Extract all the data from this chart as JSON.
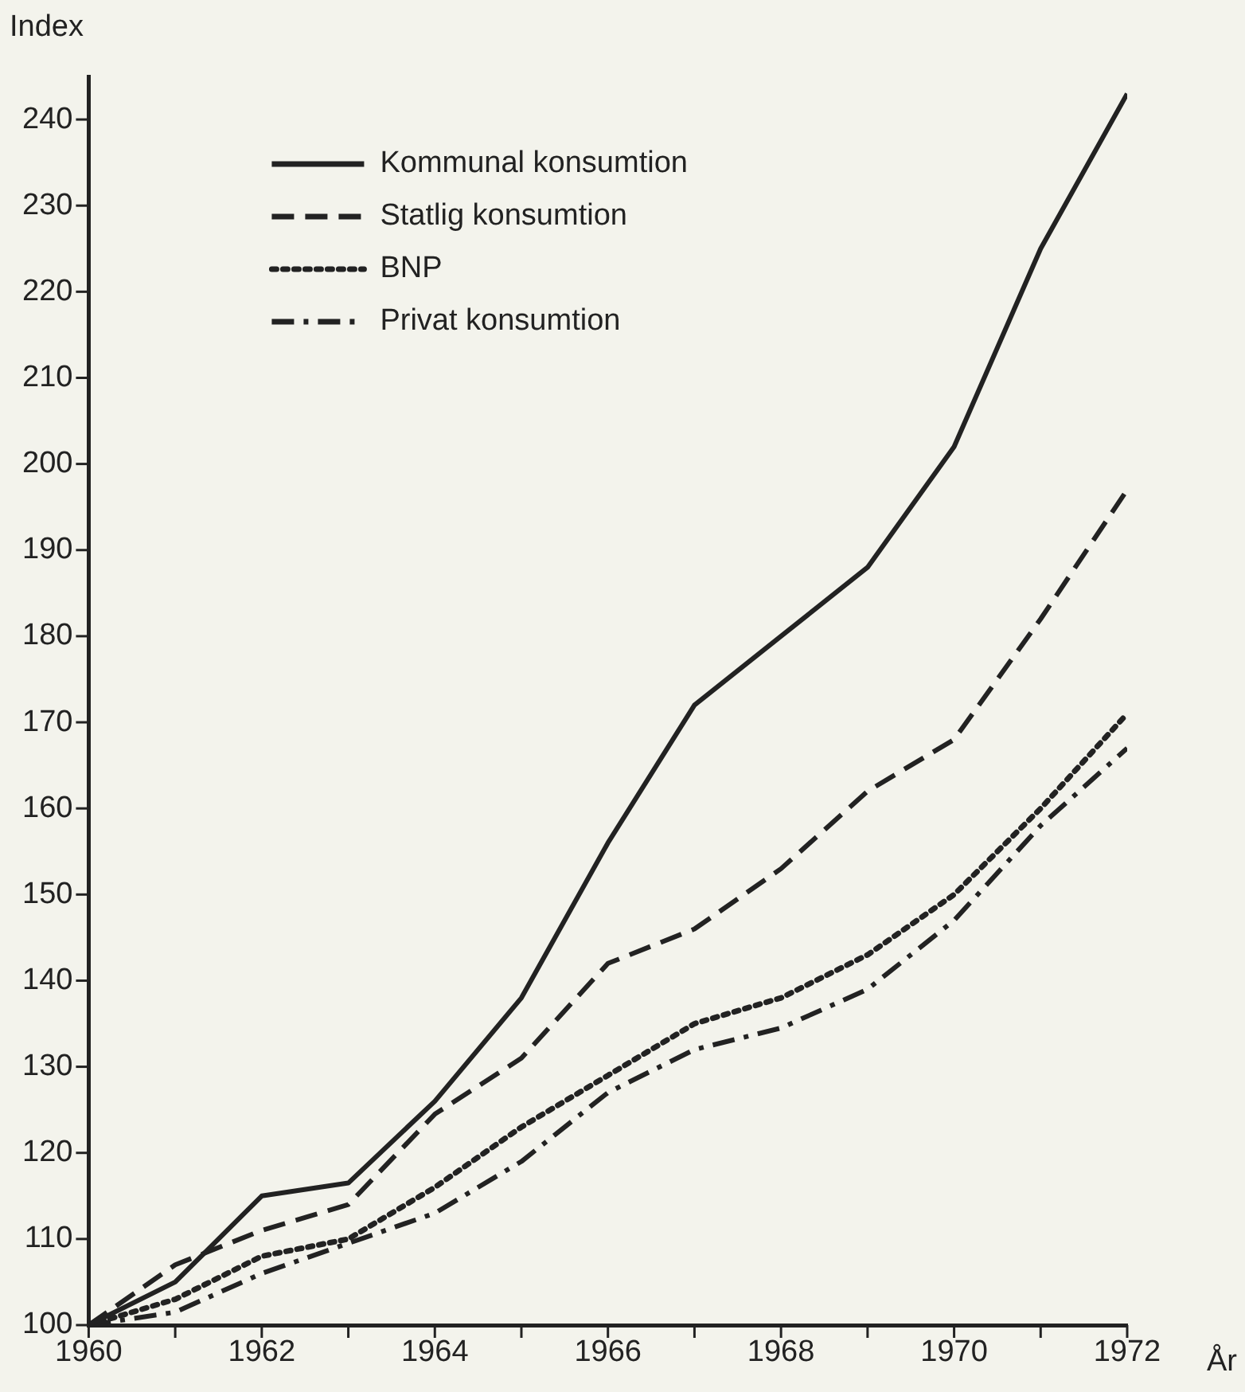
{
  "chart_data": {
    "type": "line",
    "xlabel": "År",
    "ylabel": "Index",
    "x": [
      1960,
      1961,
      1962,
      1963,
      1964,
      1965,
      1966,
      1967,
      1968,
      1969,
      1970,
      1971,
      1972
    ],
    "series": [
      {
        "name": "Kommunal konsumtion",
        "color": "#222222",
        "line_style": "solid",
        "values": [
          100,
          105,
          115,
          116.5,
          126,
          138,
          156,
          172,
          180,
          188,
          202,
          225,
          243
        ]
      },
      {
        "name": "Statlig konsumtion",
        "color": "#222222",
        "line_style": "dashed",
        "values": [
          100,
          107,
          111,
          114,
          124.5,
          131,
          142,
          146,
          153,
          162,
          168,
          182,
          197
        ]
      },
      {
        "name": "BNP",
        "color": "#222222",
        "line_style": "dotted",
        "values": [
          100,
          103,
          108,
          110,
          116,
          123,
          129,
          135,
          138,
          143,
          150,
          160,
          171
        ]
      },
      {
        "name": "Privat konsumtion",
        "color": "#222222",
        "line_style": "dashdot",
        "values": [
          100,
          101.5,
          106,
          109.5,
          113,
          119,
          127,
          132,
          134.5,
          139,
          147,
          158,
          167
        ]
      }
    ],
    "xlim": [
      1960,
      1972
    ],
    "xticks": [
      1960,
      {
        "value": 1961,
        "label": null
      },
      1962,
      {
        "value": 1963,
        "label": null
      },
      1964,
      {
        "value": 1965,
        "label": null
      },
      1966,
      {
        "value": 1967,
        "label": null
      },
      1968,
      {
        "value": 1969,
        "label": null
      },
      1970,
      {
        "value": 1971,
        "label": null
      },
      1972
    ],
    "ylim": [
      100,
      245
    ],
    "yticks": [
      100,
      110,
      120,
      130,
      140,
      150,
      160,
      170,
      180,
      190,
      200,
      210,
      220,
      230,
      240
    ],
    "grid": false,
    "legend": "top left",
    "marker": "none"
  }
}
